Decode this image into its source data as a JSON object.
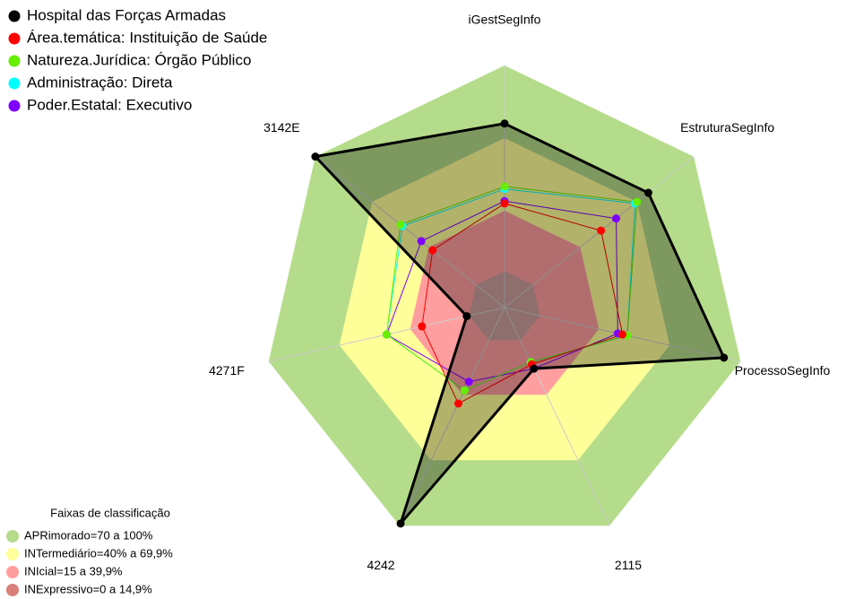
{
  "chart_data": {
    "type": "radar",
    "categories": [
      "iGestSegInfo",
      "EstruturaSegInfo",
      "ProcessoSegInfo",
      "2115",
      "4242",
      "4271F",
      "3142E"
    ],
    "ylim": [
      0,
      100
    ],
    "series": [
      {
        "name": "Hospital das Forças Armadas",
        "color": "#000000",
        "values": [
          76,
          76,
          93,
          28,
          99,
          16,
          100
        ]
      },
      {
        "name": "Área.temática: Instituição de Saúde",
        "color": "#ff0000",
        "values": [
          43,
          51,
          50,
          26,
          44,
          35,
          38
        ]
      },
      {
        "name": "Natureza.Jurídica: Órgão Público",
        "color": "#66ee00",
        "values": [
          50,
          70,
          52,
          25,
          38,
          50,
          55
        ]
      },
      {
        "name": "Administração: Direta",
        "color": "#00ffff",
        "values": [
          49,
          69,
          52,
          25,
          38,
          50,
          54
        ]
      },
      {
        "name": "Poder.Estatal: Executivo",
        "color": "#8000ff",
        "values": [
          44,
          59,
          48,
          28,
          34,
          50,
          44
        ]
      }
    ],
    "bands_title": "Faixas de classificação",
    "bands": [
      {
        "label": "APRimorado=70 a 100%",
        "color": "#b5dc8a",
        "from": 70,
        "to": 100
      },
      {
        "label": "INTermediário=40% a 69,9%",
        "color": "#ffff9a",
        "from": 40,
        "to": 70
      },
      {
        "label": "INIcial=15 a 39,9%",
        "color": "#ff9e9e",
        "from": 15,
        "to": 40
      },
      {
        "label": "INExpressivo=0 a 14,9%",
        "color": "#d9807a",
        "from": 0,
        "to": 15
      }
    ]
  }
}
